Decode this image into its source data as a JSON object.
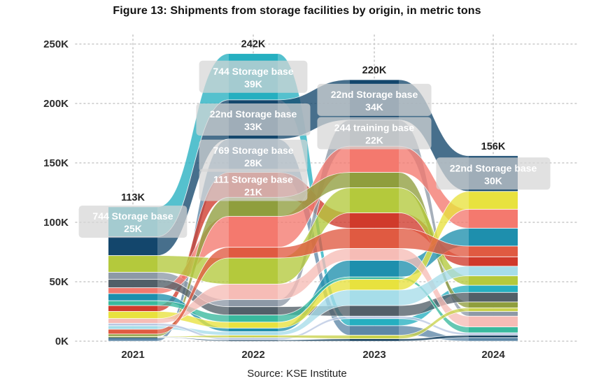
{
  "title": "Figure 13: Shipments from storage facilities by origin, in metric tons",
  "source": "Source: KSE Institute",
  "chart_data": {
    "type": "area",
    "subtype": "stacked-stream-bump-sankey",
    "title": "Figure 13: Shipments from storage facilities by origin, in metric tons",
    "unit": "metric tons",
    "years": [
      "2021",
      "2022",
      "2023",
      "2024"
    ],
    "totals_label": [
      "113K",
      "242K",
      "220K",
      "156K"
    ],
    "totals_value": [
      113000,
      242000,
      220000,
      156000
    ],
    "y_ticks": [
      "0K",
      "50K",
      "100K",
      "150K",
      "200K",
      "250K"
    ],
    "y_tick_values": [
      0,
      50000,
      100000,
      150000,
      200000,
      250000
    ],
    "ylim": [
      0,
      250000
    ],
    "grid": "dotted",
    "legend": "none",
    "series": [
      {
        "id": "s744",
        "name": "744 Storage base",
        "color": "#25afc0",
        "values_k": [
          25,
          39,
          6,
          6
        ]
      },
      {
        "id": "s22",
        "name": "22nd Storage base",
        "color": "#13466c",
        "values_k": [
          16,
          33,
          34,
          30
        ]
      },
      {
        "id": "s769",
        "name": "769 Storage base",
        "color": "#5d87a6",
        "values_k": [
          3,
          28,
          8,
          3
        ]
      },
      {
        "id": "s111",
        "name": "111 Storage base",
        "color": "#d03a2b",
        "values_k": [
          5,
          21,
          13,
          8
        ]
      },
      {
        "id": "s244",
        "name": "244 training base",
        "color": "#8d99a6",
        "values_k": [
          6,
          6,
          22,
          4
        ]
      },
      {
        "id": "salmon",
        "name": "",
        "color": "#f4796e",
        "values_k": [
          5,
          26,
          22,
          16
        ]
      },
      {
        "id": "olive",
        "name": "",
        "color": "#8f9e3d",
        "values_k": [
          2,
          16,
          13,
          5
        ]
      },
      {
        "id": "ygreen",
        "name": "",
        "color": "#b4c93c",
        "values_k": [
          14,
          22,
          21,
          8
        ]
      },
      {
        "id": "dgray",
        "name": "",
        "color": "#525f68",
        "values_k": [
          7,
          7,
          9,
          8
        ]
      },
      {
        "id": "tblue",
        "name": "",
        "color": "#1e8fad",
        "values_k": [
          6,
          3,
          14,
          15
        ]
      },
      {
        "id": "tgreen",
        "name": "",
        "color": "#39b99d",
        "values_k": [
          4,
          6,
          2,
          5
        ]
      },
      {
        "id": "yellow",
        "name": "",
        "color": "#e8e23e",
        "values_k": [
          6,
          5,
          9,
          15
        ]
      },
      {
        "id": "pink",
        "name": "",
        "color": "#f6bcb6",
        "values_k": [
          4,
          13,
          10,
          9
        ]
      },
      {
        "id": "lcyan",
        "name": "",
        "color": "#a6dde9",
        "values_k": [
          3,
          3,
          13,
          8
        ]
      },
      {
        "id": "tomato",
        "name": "",
        "color": "#e05a41",
        "values_k": [
          4,
          9,
          17,
          9
        ]
      },
      {
        "id": "peri",
        "name": "",
        "color": "#b9c7e2",
        "values_k": [
          2,
          2,
          2,
          2
        ]
      },
      {
        "id": "navy2",
        "name": "",
        "color": "#0f3a59",
        "values_k": [
          0.5,
          1,
          2,
          2
        ]
      },
      {
        "id": "olive2",
        "name": "",
        "color": "#c9d24b",
        "values_k": [
          0.5,
          2,
          3,
          3
        ]
      }
    ],
    "stack_order": [
      [
        "s744",
        "s22",
        "ygreen",
        "s244",
        "dgray",
        "salmon",
        "tblue",
        "tgreen",
        "s111",
        "yellow",
        "pink",
        "peri",
        "lcyan",
        "tomato",
        "olive",
        "olive2",
        "navy2",
        "s769"
      ],
      [
        "s744",
        "s22",
        "s769",
        "s111",
        "olive",
        "salmon",
        "tomato",
        "ygreen",
        "pink",
        "s244",
        "dgray",
        "tgreen",
        "yellow",
        "tblue",
        "lcyan",
        "olive2",
        "peri",
        "navy2"
      ],
      [
        "s22",
        "s244",
        "salmon",
        "olive",
        "ygreen",
        "s111",
        "tomato",
        "pink",
        "tblue",
        "tgreen",
        "yellow",
        "lcyan",
        "dgray",
        "peri",
        "s744",
        "s769",
        "olive2",
        "navy2"
      ],
      [
        "s22",
        "yellow",
        "salmon",
        "tblue",
        "tomato",
        "s111",
        "lcyan",
        "ygreen",
        "s744",
        "dgray",
        "olive",
        "olive2",
        "s244",
        "pink",
        "tgreen",
        "peri",
        "navy2",
        "s769"
      ]
    ],
    "band_labels": [
      {
        "year_index": 0,
        "series": "s744",
        "line1": "744 Storage base",
        "line2": "25K"
      },
      {
        "year_index": 1,
        "series": "s744",
        "line1": "744 Storage base",
        "line2": "39K"
      },
      {
        "year_index": 1,
        "series": "s22",
        "line1": "22nd Storage base",
        "line2": "33K"
      },
      {
        "year_index": 1,
        "series": "s769",
        "line1": "769 Storage base",
        "line2": "28K"
      },
      {
        "year_index": 1,
        "series": "s111",
        "line1": "111 Storage base",
        "line2": "21K"
      },
      {
        "year_index": 2,
        "series": "s22",
        "line1": "22nd Storage base",
        "line2": "34K"
      },
      {
        "year_index": 2,
        "series": "s244",
        "line1": "244 training base",
        "line2": "22K"
      },
      {
        "year_index": 3,
        "series": "s22",
        "line1": "22nd Storage base",
        "line2": "30K"
      }
    ],
    "label_box_color": "#d6d6d6",
    "grid_color": "#c9c9c9"
  }
}
